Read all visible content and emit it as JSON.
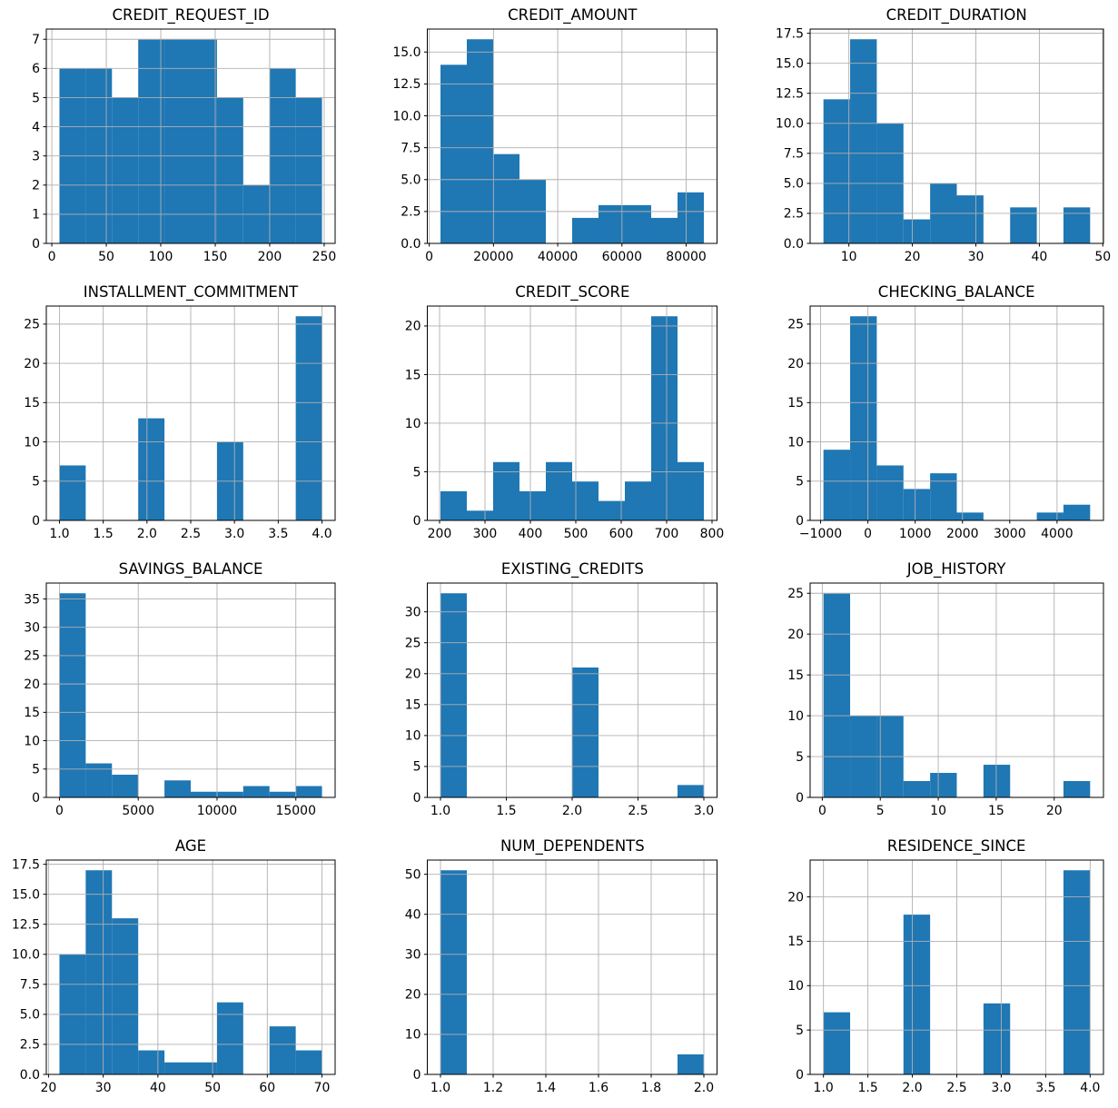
{
  "figure": {
    "background": "#ffffff",
    "bar_color": "#1f77b4",
    "grid_color": "#b0b0b0",
    "spine_color": "#000000",
    "rows": 4,
    "cols": 3,
    "grid": true,
    "legend": "none"
  },
  "chart_data": [
    {
      "type": "bar",
      "subtype": "histogram",
      "title": "CREDIT_REQUEST_ID",
      "xlabel": "",
      "ylabel": "",
      "bin_start": 7,
      "bin_end": 248,
      "bin_width": 24.1,
      "values": [
        6,
        6,
        5,
        7,
        7,
        7,
        5,
        2,
        6,
        5
      ],
      "xticks": [
        0,
        50,
        100,
        150,
        200,
        250
      ],
      "xtick_labels": [
        "0",
        "50",
        "100",
        "150",
        "200",
        "250"
      ],
      "yticks": [
        0,
        1,
        2,
        3,
        4,
        5,
        6,
        7
      ],
      "ytick_labels": [
        "0",
        "1",
        "2",
        "3",
        "4",
        "5",
        "6",
        "7"
      ],
      "xlim": [
        -5.05,
        260.05
      ],
      "ylim": [
        0,
        7.35
      ],
      "grid": true
    },
    {
      "type": "bar",
      "subtype": "histogram",
      "title": "CREDIT_AMOUNT",
      "xlabel": "",
      "ylabel": "",
      "bin_start": 3500,
      "bin_end": 85500,
      "bin_width": 8200,
      "values": [
        14,
        16,
        7,
        5,
        0,
        2,
        3,
        3,
        2,
        4
      ],
      "xticks": [
        0,
        20000,
        40000,
        60000,
        80000
      ],
      "xtick_labels": [
        "0",
        "20000",
        "40000",
        "60000",
        "80000"
      ],
      "yticks": [
        0,
        2.5,
        5,
        7.5,
        10,
        12.5,
        15
      ],
      "ytick_labels": [
        "0.0",
        "2.5",
        "5.0",
        "7.5",
        "10.0",
        "12.5",
        "15.0"
      ],
      "xlim": [
        -600,
        89600
      ],
      "ylim": [
        0,
        16.8
      ],
      "grid": true
    },
    {
      "type": "bar",
      "subtype": "histogram",
      "title": "CREDIT_DURATION",
      "xlabel": "",
      "ylabel": "",
      "bin_start": 6,
      "bin_end": 48,
      "bin_width": 4.2,
      "values": [
        12,
        17,
        10,
        2,
        5,
        4,
        0,
        3,
        0,
        3
      ],
      "xticks": [
        10,
        20,
        30,
        40,
        50
      ],
      "xtick_labels": [
        "10",
        "20",
        "30",
        "40",
        "50"
      ],
      "yticks": [
        0,
        2.5,
        5,
        7.5,
        10,
        12.5,
        15,
        17.5
      ],
      "ytick_labels": [
        "0.0",
        "2.5",
        "5.0",
        "7.5",
        "10.0",
        "12.5",
        "15.0",
        "17.5"
      ],
      "xlim": [
        3.9,
        50.1
      ],
      "ylim": [
        0,
        17.85
      ],
      "grid": true
    },
    {
      "type": "bar",
      "subtype": "histogram",
      "title": "INSTALLMENT_COMMITMENT",
      "xlabel": "",
      "ylabel": "",
      "bin_start": 1,
      "bin_end": 4,
      "bin_width": 0.3,
      "values": [
        7,
        0,
        0,
        13,
        0,
        0,
        10,
        0,
        0,
        26
      ],
      "xticks": [
        1,
        1.5,
        2,
        2.5,
        3,
        3.5,
        4
      ],
      "xtick_labels": [
        "1.0",
        "1.5",
        "2.0",
        "2.5",
        "3.0",
        "3.5",
        "4.0"
      ],
      "yticks": [
        0,
        5,
        10,
        15,
        20,
        25
      ],
      "ytick_labels": [
        "0",
        "5",
        "10",
        "15",
        "20",
        "25"
      ],
      "xlim": [
        0.85,
        4.15
      ],
      "ylim": [
        0,
        27.3
      ],
      "grid": true
    },
    {
      "type": "bar",
      "subtype": "histogram",
      "title": "CREDIT_SCORE",
      "xlabel": "",
      "ylabel": "",
      "bin_start": 202,
      "bin_end": 782,
      "bin_width": 58,
      "values": [
        3,
        1,
        6,
        3,
        6,
        4,
        2,
        4,
        21,
        6
      ],
      "xticks": [
        200,
        300,
        400,
        500,
        600,
        700,
        800
      ],
      "xtick_labels": [
        "200",
        "300",
        "400",
        "500",
        "600",
        "700",
        "800"
      ],
      "yticks": [
        0,
        5,
        10,
        15,
        20
      ],
      "ytick_labels": [
        "0",
        "5",
        "10",
        "15",
        "20"
      ],
      "xlim": [
        173,
        811
      ],
      "ylim": [
        0,
        22.05
      ],
      "grid": true
    },
    {
      "type": "bar",
      "subtype": "histogram",
      "title": "CHECKING_BALANCE",
      "xlabel": "",
      "ylabel": "",
      "bin_start": -940,
      "bin_end": 4700,
      "bin_width": 564,
      "values": [
        9,
        26,
        7,
        4,
        6,
        1,
        0,
        0,
        1,
        2
      ],
      "xticks": [
        -1000,
        0,
        1000,
        2000,
        3000,
        4000
      ],
      "xtick_labels": [
        "−1000",
        "0",
        "1000",
        "2000",
        "3000",
        "4000"
      ],
      "yticks": [
        0,
        5,
        10,
        15,
        20,
        25
      ],
      "ytick_labels": [
        "0",
        "5",
        "10",
        "15",
        "20",
        "25"
      ],
      "xlim": [
        -1222,
        4982
      ],
      "ylim": [
        0,
        27.3
      ],
      "grid": true
    },
    {
      "type": "bar",
      "subtype": "histogram",
      "title": "SAVINGS_BALANCE",
      "xlabel": "",
      "ylabel": "",
      "bin_start": 0,
      "bin_end": 16660,
      "bin_width": 1666,
      "values": [
        36,
        6,
        4,
        0,
        3,
        1,
        1,
        2,
        1,
        2
      ],
      "xticks": [
        0,
        5000,
        10000,
        15000
      ],
      "xtick_labels": [
        "0",
        "5000",
        "10000",
        "15000"
      ],
      "yticks": [
        0,
        5,
        10,
        15,
        20,
        25,
        30,
        35
      ],
      "ytick_labels": [
        "0",
        "5",
        "10",
        "15",
        "20",
        "25",
        "30",
        "35"
      ],
      "xlim": [
        -833,
        17493
      ],
      "ylim": [
        0,
        37.8
      ],
      "grid": true
    },
    {
      "type": "bar",
      "subtype": "histogram",
      "title": "EXISTING_CREDITS",
      "xlabel": "",
      "ylabel": "",
      "bin_start": 1,
      "bin_end": 3,
      "bin_width": 0.2,
      "values": [
        33,
        0,
        0,
        0,
        0,
        21,
        0,
        0,
        0,
        2
      ],
      "xticks": [
        1,
        1.5,
        2,
        2.5,
        3
      ],
      "xtick_labels": [
        "1.0",
        "1.5",
        "2.0",
        "2.5",
        "3.0"
      ],
      "yticks": [
        0,
        5,
        10,
        15,
        20,
        25,
        30
      ],
      "ytick_labels": [
        "0",
        "5",
        "10",
        "15",
        "20",
        "25",
        "30"
      ],
      "xlim": [
        0.9,
        3.1
      ],
      "ylim": [
        0,
        34.65
      ],
      "grid": true
    },
    {
      "type": "bar",
      "subtype": "histogram",
      "title": "JOB_HISTORY",
      "xlabel": "",
      "ylabel": "",
      "bin_start": 0.1,
      "bin_end": 23.1,
      "bin_width": 2.3,
      "values": [
        25,
        10,
        10,
        2,
        3,
        0,
        4,
        0,
        0,
        2
      ],
      "xticks": [
        0,
        5,
        10,
        15,
        20
      ],
      "xtick_labels": [
        "0",
        "5",
        "10",
        "15",
        "20"
      ],
      "yticks": [
        0,
        5,
        10,
        15,
        20,
        25
      ],
      "ytick_labels": [
        "0",
        "5",
        "10",
        "15",
        "20",
        "25"
      ],
      "xlim": [
        -1.05,
        24.25
      ],
      "ylim": [
        0,
        26.25
      ],
      "grid": true
    },
    {
      "type": "bar",
      "subtype": "histogram",
      "title": "AGE",
      "xlabel": "",
      "ylabel": "",
      "bin_start": 22,
      "bin_end": 70,
      "bin_width": 4.8,
      "values": [
        10,
        17,
        13,
        2,
        1,
        1,
        6,
        0,
        4,
        2
      ],
      "xticks": [
        20,
        30,
        40,
        50,
        60,
        70
      ],
      "xtick_labels": [
        "20",
        "30",
        "40",
        "50",
        "60",
        "70"
      ],
      "yticks": [
        0,
        2.5,
        5,
        7.5,
        10,
        12.5,
        15,
        17.5
      ],
      "ytick_labels": [
        "0.0",
        "2.5",
        "5.0",
        "7.5",
        "10.0",
        "12.5",
        "15.0",
        "17.5"
      ],
      "xlim": [
        19.6,
        72.4
      ],
      "ylim": [
        0,
        17.85
      ],
      "grid": true
    },
    {
      "type": "bar",
      "subtype": "histogram",
      "title": "NUM_DEPENDENTS",
      "xlabel": "",
      "ylabel": "",
      "bin_start": 1,
      "bin_end": 2,
      "bin_width": 0.1,
      "values": [
        51,
        0,
        0,
        0,
        0,
        0,
        0,
        0,
        0,
        5
      ],
      "xticks": [
        1,
        1.2,
        1.4,
        1.6,
        1.8,
        2
      ],
      "xtick_labels": [
        "1.0",
        "1.2",
        "1.4",
        "1.6",
        "1.8",
        "2.0"
      ],
      "yticks": [
        0,
        10,
        20,
        30,
        40,
        50
      ],
      "ytick_labels": [
        "0",
        "10",
        "20",
        "30",
        "40",
        "50"
      ],
      "xlim": [
        0.95,
        2.05
      ],
      "ylim": [
        0,
        53.55
      ],
      "grid": true
    },
    {
      "type": "bar",
      "subtype": "histogram",
      "title": "RESIDENCE_SINCE",
      "xlabel": "",
      "ylabel": "",
      "bin_start": 1,
      "bin_end": 4,
      "bin_width": 0.3,
      "values": [
        7,
        0,
        0,
        18,
        0,
        0,
        8,
        0,
        0,
        23
      ],
      "xticks": [
        1,
        1.5,
        2,
        2.5,
        3,
        3.5,
        4
      ],
      "xtick_labels": [
        "1.0",
        "1.5",
        "2.0",
        "2.5",
        "3.0",
        "3.5",
        "4.0"
      ],
      "yticks": [
        0,
        5,
        10,
        15,
        20
      ],
      "ytick_labels": [
        "0",
        "5",
        "10",
        "15",
        "20"
      ],
      "xlim": [
        0.85,
        4.15
      ],
      "ylim": [
        0,
        24.15
      ],
      "grid": true
    }
  ]
}
